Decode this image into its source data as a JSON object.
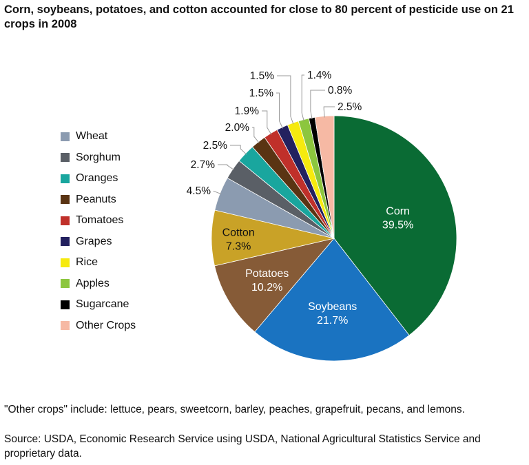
{
  "title": "Corn, soybeans, potatoes, and cotton accounted for close to 80 percent of pesticide use on 21 crops in 2008",
  "note": "\"Other crops\" include: lettuce, pears, sweetcorn, barley, peaches, grapefruit, pecans, and lemons.",
  "source": "Source: USDA, Economic Research Service using USDA, National Agricultural Statistics Service and proprietary data.",
  "chart_data": {
    "type": "pie",
    "unit": "%",
    "slices": [
      {
        "name": "Corn",
        "value": 39.5,
        "label": "39.5%",
        "color": "#0a6b34"
      },
      {
        "name": "Soybeans",
        "value": 21.7,
        "label": "21.7%",
        "color": "#1a73c1"
      },
      {
        "name": "Potatoes",
        "value": 10.2,
        "label": "10.2%",
        "color": "#865b37"
      },
      {
        "name": "Cotton",
        "value": 7.3,
        "label": "7.3%",
        "color": "#c9a227"
      },
      {
        "name": "Wheat",
        "value": 4.5,
        "label": "4.5%",
        "color": "#8b9bb0"
      },
      {
        "name": "Sorghum",
        "value": 2.7,
        "label": "2.7%",
        "color": "#5a5f66"
      },
      {
        "name": "Oranges",
        "value": 2.5,
        "label": "2.5%",
        "color": "#19a69e"
      },
      {
        "name": "Peanuts",
        "value": 2.0,
        "label": "2.0%",
        "color": "#5a3413"
      },
      {
        "name": "Tomatoes",
        "value": 1.9,
        "label": "1.9%",
        "color": "#c0302a"
      },
      {
        "name": "Grapes",
        "value": 1.5,
        "label": "1.5%",
        "color": "#23215f"
      },
      {
        "name": "Rice",
        "value": 1.5,
        "label": "1.5%",
        "color": "#f6ea0e"
      },
      {
        "name": "Apples",
        "value": 1.4,
        "label": "1.4%",
        "color": "#8cc63e"
      },
      {
        "name": "Sugarcane",
        "value": 0.8,
        "label": "0.8%",
        "color": "#000000"
      },
      {
        "name": "Other Crops",
        "value": 2.5,
        "label": "2.5%",
        "color": "#f6b9a4"
      }
    ],
    "legend": [
      "Wheat",
      "Sorghum",
      "Oranges",
      "Peanuts",
      "Tomatoes",
      "Grapes",
      "Rice",
      "Apples",
      "Sugarcane",
      "Other Crops"
    ],
    "legend_placement": "left"
  }
}
